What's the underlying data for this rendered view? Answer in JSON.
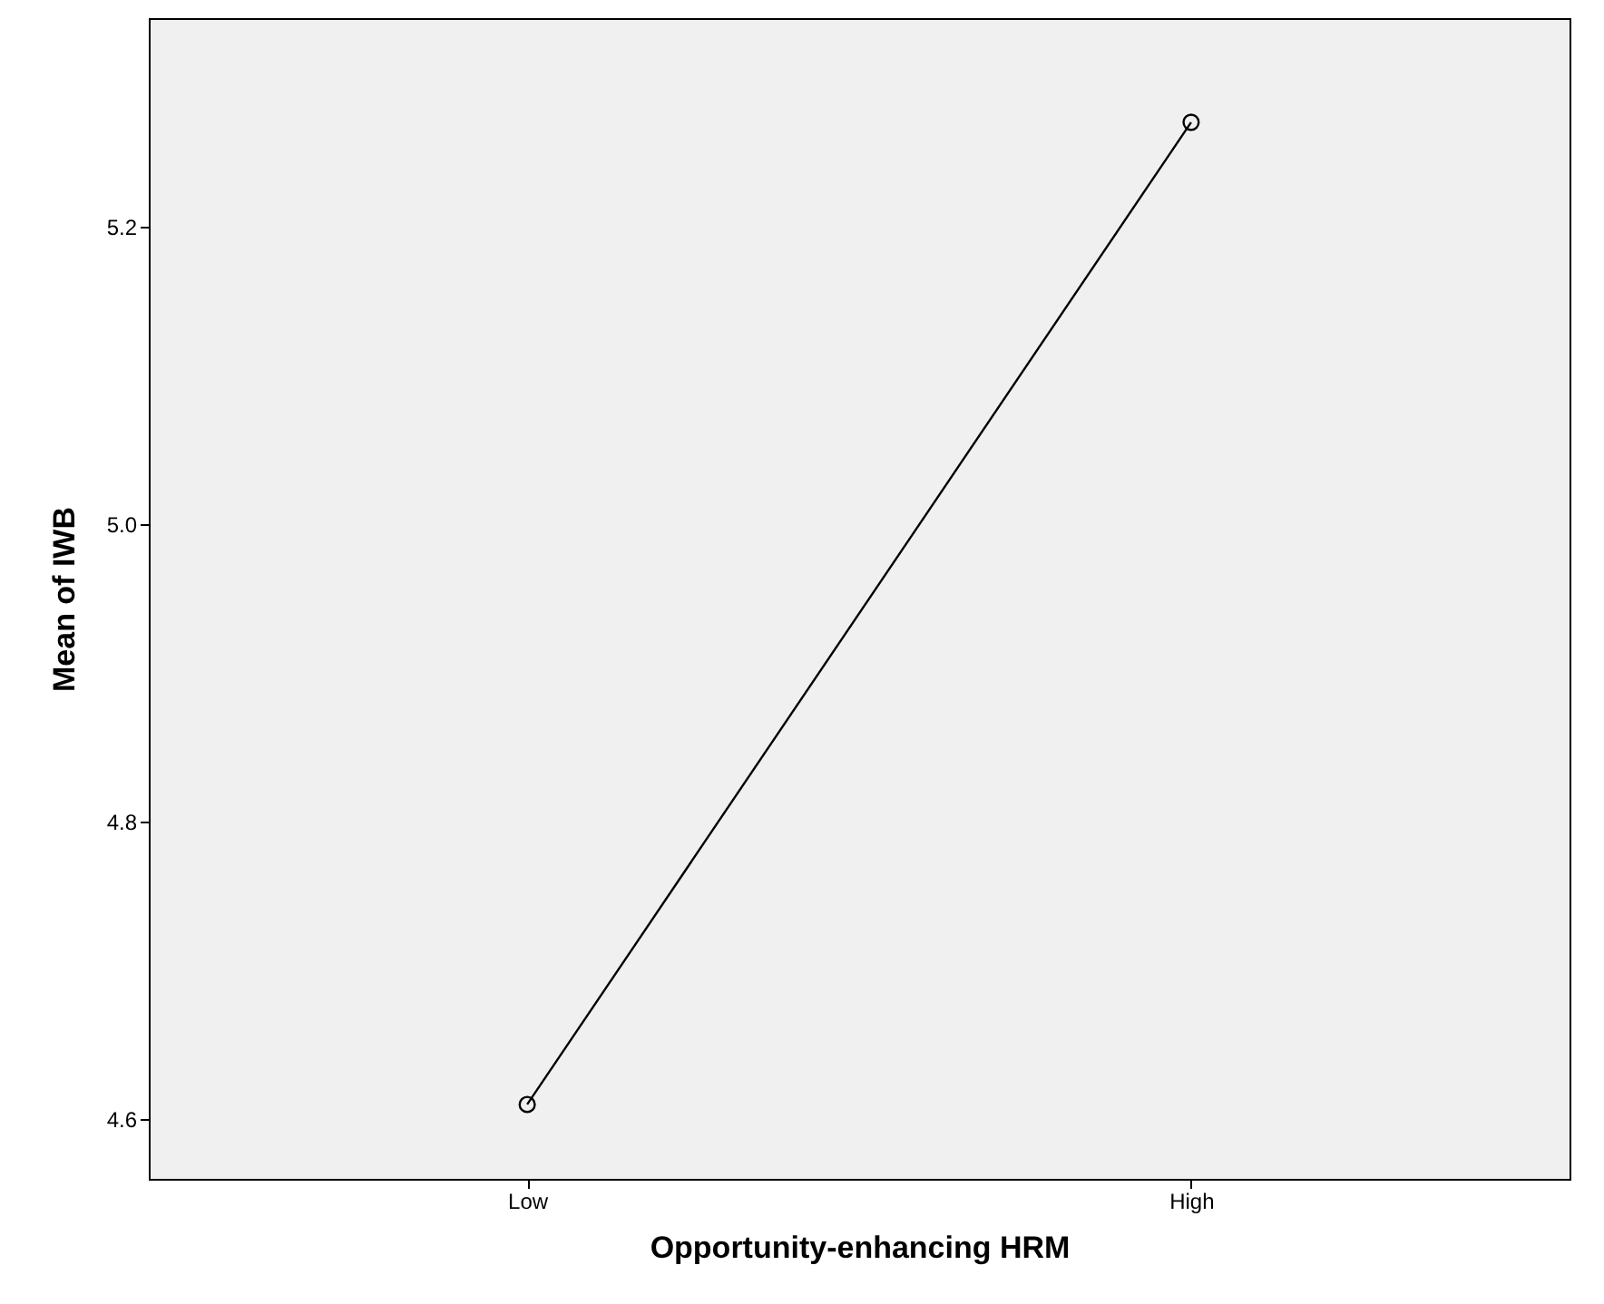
{
  "chart_data": {
    "type": "line",
    "xlabel": "Opportunity-enhancing HRM",
    "ylabel": "Mean of IWB",
    "categories": [
      "Low",
      "High"
    ],
    "series": [
      {
        "color": "#000000",
        "values": [
          4.61,
          5.27
        ]
      }
    ],
    "ylim": [
      4.56,
      5.34
    ],
    "yticks": [
      4.6,
      4.8,
      {
        "value": 5.0,
        "label": "5.0"
      },
      5.2
    ],
    "marker": "circle",
    "line_style": "solid"
  }
}
